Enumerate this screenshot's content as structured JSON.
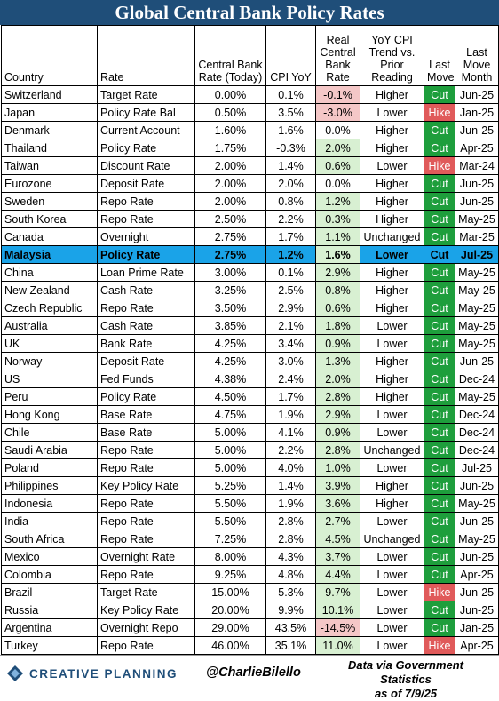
{
  "title": "Global Central Bank Policy Rates",
  "headers": {
    "country": "Country",
    "rate": "Rate",
    "cb_rate": "Central Bank Rate (Today)",
    "cpi": "CPI YoY",
    "real": "Real Central Bank Rate",
    "trend": "YoY CPI Trend vs. Prior Reading",
    "last_move": "Last Move",
    "last_month": "Last Move Month"
  },
  "rows": [
    {
      "country": "Switzerland",
      "rate": "Target Rate",
      "cb": "0.00%",
      "cpi": "0.1%",
      "real": "-0.1%",
      "trend": "Higher",
      "move": "Cut",
      "month": "Jun-25"
    },
    {
      "country": "Japan",
      "rate": "Policy Rate Bal",
      "cb": "0.50%",
      "cpi": "3.5%",
      "real": "-3.0%",
      "trend": "Lower",
      "move": "Hike",
      "month": "Jan-25"
    },
    {
      "country": "Denmark",
      "rate": "Current Account",
      "cb": "1.60%",
      "cpi": "1.6%",
      "real": "0.0%",
      "trend": "Higher",
      "move": "Cut",
      "month": "Jun-25"
    },
    {
      "country": "Thailand",
      "rate": "Policy Rate",
      "cb": "1.75%",
      "cpi": "-0.3%",
      "real": "2.0%",
      "trend": "Higher",
      "move": "Cut",
      "month": "Apr-25"
    },
    {
      "country": "Taiwan",
      "rate": "Discount Rate",
      "cb": "2.00%",
      "cpi": "1.4%",
      "real": "0.6%",
      "trend": "Lower",
      "move": "Hike",
      "month": "Mar-24"
    },
    {
      "country": "Eurozone",
      "rate": "Deposit Rate",
      "cb": "2.00%",
      "cpi": "2.0%",
      "real": "0.0%",
      "trend": "Higher",
      "move": "Cut",
      "month": "Jun-25"
    },
    {
      "country": "Sweden",
      "rate": "Repo Rate",
      "cb": "2.00%",
      "cpi": "0.8%",
      "real": "1.2%",
      "trend": "Higher",
      "move": "Cut",
      "month": "Jun-25"
    },
    {
      "country": "South Korea",
      "rate": "Repo Rate",
      "cb": "2.50%",
      "cpi": "2.2%",
      "real": "0.3%",
      "trend": "Higher",
      "move": "Cut",
      "month": "May-25"
    },
    {
      "country": "Canada",
      "rate": "Overnight",
      "cb": "2.75%",
      "cpi": "1.7%",
      "real": "1.1%",
      "trend": "Unchanged",
      "move": "Cut",
      "month": "Mar-25"
    },
    {
      "country": "Malaysia",
      "rate": "Policy Rate",
      "cb": "2.75%",
      "cpi": "1.2%",
      "real": "1.6%",
      "trend": "Lower",
      "move": "Cut",
      "month": "Jul-25"
    },
    {
      "country": "China",
      "rate": "Loan Prime Rate",
      "cb": "3.00%",
      "cpi": "0.1%",
      "real": "2.9%",
      "trend": "Higher",
      "move": "Cut",
      "month": "May-25"
    },
    {
      "country": "New Zealand",
      "rate": "Cash Rate",
      "cb": "3.25%",
      "cpi": "2.5%",
      "real": "0.8%",
      "trend": "Higher",
      "move": "Cut",
      "month": "May-25"
    },
    {
      "country": "Czech Republic",
      "rate": "Repo Rate",
      "cb": "3.50%",
      "cpi": "2.9%",
      "real": "0.6%",
      "trend": "Higher",
      "move": "Cut",
      "month": "May-25"
    },
    {
      "country": "Australia",
      "rate": "Cash Rate",
      "cb": "3.85%",
      "cpi": "2.1%",
      "real": "1.8%",
      "trend": "Lower",
      "move": "Cut",
      "month": "May-25"
    },
    {
      "country": "UK",
      "rate": "Bank Rate",
      "cb": "4.25%",
      "cpi": "3.4%",
      "real": "0.9%",
      "trend": "Lower",
      "move": "Cut",
      "month": "May-25"
    },
    {
      "country": "Norway",
      "rate": "Deposit Rate",
      "cb": "4.25%",
      "cpi": "3.0%",
      "real": "1.3%",
      "trend": "Higher",
      "move": "Cut",
      "month": "Jun-25"
    },
    {
      "country": "US",
      "rate": "Fed Funds",
      "cb": "4.38%",
      "cpi": "2.4%",
      "real": "2.0%",
      "trend": "Higher",
      "move": "Cut",
      "month": "Dec-24"
    },
    {
      "country": "Peru",
      "rate": "Policy Rate",
      "cb": "4.50%",
      "cpi": "1.7%",
      "real": "2.8%",
      "trend": "Higher",
      "move": "Cut",
      "month": "May-25"
    },
    {
      "country": "Hong Kong",
      "rate": "Base Rate",
      "cb": "4.75%",
      "cpi": "1.9%",
      "real": "2.9%",
      "trend": "Lower",
      "move": "Cut",
      "month": "Dec-24"
    },
    {
      "country": "Chile",
      "rate": "Base Rate",
      "cb": "5.00%",
      "cpi": "4.1%",
      "real": "0.9%",
      "trend": "Lower",
      "move": "Cut",
      "month": "Dec-24"
    },
    {
      "country": "Saudi Arabia",
      "rate": "Repo Rate",
      "cb": "5.00%",
      "cpi": "2.2%",
      "real": "2.8%",
      "trend": "Unchanged",
      "move": "Cut",
      "month": "Dec-24"
    },
    {
      "country": "Poland",
      "rate": "Repo Rate",
      "cb": "5.00%",
      "cpi": "4.0%",
      "real": "1.0%",
      "trend": "Lower",
      "move": "Cut",
      "month": "Jul-25"
    },
    {
      "country": "Philippines",
      "rate": "Key Policy Rate",
      "cb": "5.25%",
      "cpi": "1.4%",
      "real": "3.9%",
      "trend": "Higher",
      "move": "Cut",
      "month": "Jun-25"
    },
    {
      "country": "Indonesia",
      "rate": "Repo Rate",
      "cb": "5.50%",
      "cpi": "1.9%",
      "real": "3.6%",
      "trend": "Higher",
      "move": "Cut",
      "month": "May-25"
    },
    {
      "country": "India",
      "rate": "Repo Rate",
      "cb": "5.50%",
      "cpi": "2.8%",
      "real": "2.7%",
      "trend": "Lower",
      "move": "Cut",
      "month": "Jun-25"
    },
    {
      "country": "South Africa",
      "rate": "Repo Rate",
      "cb": "7.25%",
      "cpi": "2.8%",
      "real": "4.5%",
      "trend": "Unchanged",
      "move": "Cut",
      "month": "May-25"
    },
    {
      "country": "Mexico",
      "rate": "Overnight Rate",
      "cb": "8.00%",
      "cpi": "4.3%",
      "real": "3.7%",
      "trend": "Lower",
      "move": "Cut",
      "month": "Jun-25"
    },
    {
      "country": "Colombia",
      "rate": "Repo Rate",
      "cb": "9.25%",
      "cpi": "4.8%",
      "real": "4.4%",
      "trend": "Lower",
      "move": "Cut",
      "month": "Apr-25"
    },
    {
      "country": "Brazil",
      "rate": "Target Rate",
      "cb": "15.00%",
      "cpi": "5.3%",
      "real": "9.7%",
      "trend": "Lower",
      "move": "Hike",
      "month": "Jun-25"
    },
    {
      "country": "Russia",
      "rate": "Key Policy Rate",
      "cb": "20.00%",
      "cpi": "9.9%",
      "real": "10.1%",
      "trend": "Lower",
      "move": "Cut",
      "month": "Jun-25"
    },
    {
      "country": "Argentina",
      "rate": "Overnight Repo",
      "cb": "29.00%",
      "cpi": "43.5%",
      "real": "-14.5%",
      "trend": "Lower",
      "move": "Cut",
      "month": "Jan-25"
    },
    {
      "country": "Turkey",
      "rate": "Repo Rate",
      "cb": "46.00%",
      "cpi": "35.1%",
      "real": "11.0%",
      "trend": "Lower",
      "move": "Hike",
      "month": "Apr-25"
    }
  ],
  "highlight_country": "Malaysia",
  "colors": {
    "title_bg": "#1f4e79",
    "highlight_row": "#1aa3e8",
    "cut": "#1e9e3c",
    "hike": "#e05a5a",
    "real_positive": "#d8f0d2",
    "real_negative": "#f4c7c7"
  },
  "footer": {
    "logo_icon": "creative-planning-logo-mark",
    "logo_text": "CREATIVE PLANNING",
    "handle": "@CharlieBilello",
    "source_line1": "Data via Government Statistics",
    "source_line2": "as of 7/9/25"
  }
}
